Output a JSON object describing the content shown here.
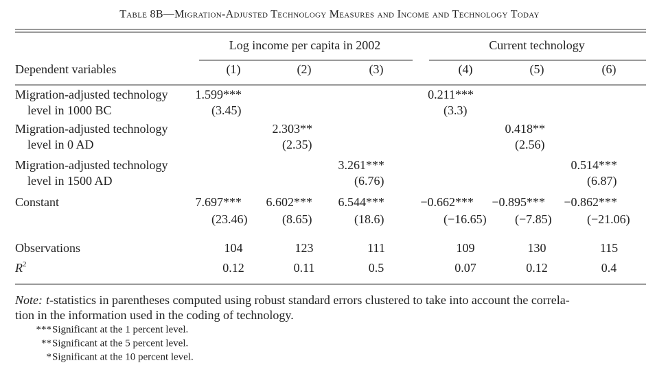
{
  "title": "Table 8B—Migration-Adjusted Technology Measures and Income and Technology Today",
  "groups": [
    "Log income per capita in 2002",
    "Current technology"
  ],
  "stub_header": "Dependent variables",
  "columns": [
    "(1)",
    "(2)",
    "(3)",
    "(4)",
    "(5)",
    "(6)"
  ],
  "rows": [
    {
      "label": [
        "Migration-adjusted technology",
        "level in 1000 BC"
      ],
      "cells": [
        [
          "1.599***",
          "(3.45)"
        ],
        null,
        null,
        [
          "0.211***",
          "(3.3)"
        ],
        null,
        null
      ]
    },
    {
      "label": [
        "Migration-adjusted technology",
        "level in 0 AD"
      ],
      "cells": [
        null,
        [
          "2.303**",
          "(2.35)"
        ],
        null,
        null,
        [
          "0.418**",
          "(2.56)"
        ],
        null
      ]
    },
    {
      "label": [
        "Migration-adjusted technology",
        "level in 1500 AD"
      ],
      "cells": [
        null,
        null,
        [
          "3.261***",
          "(6.76)"
        ],
        null,
        null,
        [
          "0.514***",
          "(6.87)"
        ]
      ]
    },
    {
      "label": [
        "Constant"
      ],
      "cells": [
        [
          "7.697***",
          "(23.46)"
        ],
        [
          "6.602***",
          "(8.65)"
        ],
        [
          "6.544***",
          "(18.6)"
        ],
        [
          "−0.662***",
          "(−16.65)"
        ],
        [
          "−0.895***",
          "(−7.85)"
        ],
        [
          "−0.862***",
          "(−21.06)"
        ]
      ]
    }
  ],
  "observations": {
    "label": "Observations",
    "values": [
      "104",
      "123",
      "111",
      "109",
      "130",
      "115"
    ]
  },
  "r2": {
    "label": "R",
    "superscript": "2",
    "values": [
      "0.12",
      "0.11",
      "0.5",
      "0.07",
      "0.12",
      "0.4"
    ]
  },
  "note": {
    "lead": "Note:",
    "italic": "t",
    "lines": [
      "-statistics in parentheses computed using robust standard errors clustered to take into account the correla-",
      "tion in the information used in the coding of technology."
    ]
  },
  "footnotes": [
    {
      "marker": "***",
      "text": "Significant at the 1 percent level."
    },
    {
      "marker": "**",
      "text": "Significant at the 5 percent level."
    },
    {
      "marker": "*",
      "text": "Significant at the 10 percent level."
    }
  ]
}
